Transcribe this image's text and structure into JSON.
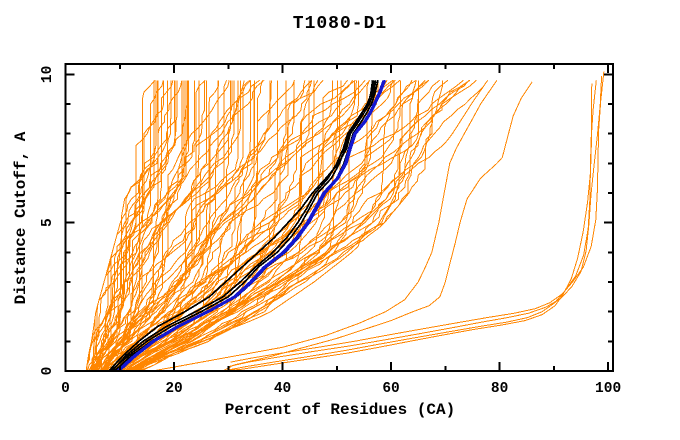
{
  "title": "T1080-D1",
  "x_axis": {
    "label": "Percent of Residues (CA)",
    "min": 0,
    "max": 100,
    "major_ticks": [
      0,
      20,
      40,
      60,
      80,
      100
    ],
    "minor_ticks": [
      10,
      30,
      50,
      70,
      90
    ]
  },
  "y_axis": {
    "label": "Distance Cutoff, A",
    "min": 0,
    "max": 10,
    "major_ticks": [
      0,
      5,
      10
    ],
    "minor_ticks": [
      1,
      2,
      3,
      4,
      6,
      7,
      8,
      9
    ]
  },
  "colors": {
    "predictions": "#ff8600",
    "highlight_black": "#000000",
    "highlight_blue": "#1518cf",
    "axis": "#000000",
    "background": "#ffffff"
  },
  "chart_data": {
    "type": "line",
    "title": "T1080-D1",
    "xlabel": "Percent of Residues (CA)",
    "ylabel": "Distance Cutoff, A",
    "xlim": [
      0,
      100.9
    ],
    "ylim": [
      0,
      10.35
    ],
    "grid": false,
    "legend": "none",
    "curve_y_max": 9.8,
    "orange_bundle": {
      "comment": "dense fan of prediction curves; envelope rows are [y, x_left, x_right]",
      "count": 95,
      "seed": 20211080,
      "y_step": 0.2,
      "envelope": [
        [
          0,
          4.2,
          13.5
        ],
        [
          0.5,
          4.6,
          19
        ],
        [
          1,
          5.2,
          26
        ],
        [
          1.5,
          5.6,
          31.5
        ],
        [
          2,
          6.0,
          37
        ],
        [
          3,
          7.5,
          45
        ],
        [
          4,
          9.0,
          52
        ],
        [
          5,
          10.5,
          58
        ],
        [
          6,
          11.5,
          62.5
        ],
        [
          7,
          12.3,
          66.5
        ],
        [
          8,
          12.9,
          70.5
        ],
        [
          9,
          13.2,
          74
        ],
        [
          9.8,
          13.4,
          77
        ]
      ]
    },
    "black_curves": [
      [
        [
          0,
          8.0
        ],
        [
          0.5,
          10.5
        ],
        [
          1,
          13.5
        ],
        [
          1.5,
          17
        ],
        [
          2,
          22
        ],
        [
          2.5,
          26.5
        ],
        [
          3,
          29.5
        ],
        [
          3.5,
          32.5
        ],
        [
          4,
          35.5
        ],
        [
          4.5,
          38.5
        ],
        [
          5,
          41
        ],
        [
          5.5,
          43.5
        ],
        [
          6,
          45.5
        ],
        [
          6.5,
          48
        ],
        [
          7,
          50.3
        ],
        [
          7.5,
          51.8
        ],
        [
          8,
          52.5
        ],
        [
          8.4,
          54
        ],
        [
          8.7,
          55
        ],
        [
          9,
          55.8
        ],
        [
          9.4,
          56.3
        ],
        [
          9.8,
          56.6
        ]
      ],
      [
        [
          0,
          8.3
        ],
        [
          0.5,
          11.5
        ],
        [
          1,
          15
        ],
        [
          1.5,
          19.5
        ],
        [
          2,
          25
        ],
        [
          2.5,
          30
        ],
        [
          3,
          33
        ],
        [
          3.5,
          35.5
        ],
        [
          4,
          39
        ],
        [
          4.5,
          41.5
        ],
        [
          5,
          43.5
        ],
        [
          5.5,
          45
        ],
        [
          6,
          46.5
        ],
        [
          6.5,
          49
        ],
        [
          7,
          50.5
        ],
        [
          7.5,
          51.5
        ],
        [
          8,
          52.2
        ],
        [
          8.4,
          53.8
        ],
        [
          8.7,
          55
        ],
        [
          9,
          56
        ],
        [
          9.4,
          56.8
        ],
        [
          9.8,
          57.2
        ]
      ],
      [
        [
          0,
          8.6
        ],
        [
          0.5,
          11
        ],
        [
          1,
          14.3
        ],
        [
          1.5,
          18.6
        ],
        [
          2,
          24
        ],
        [
          2.5,
          29
        ],
        [
          3,
          32.2
        ],
        [
          3.5,
          35
        ],
        [
          4,
          38.2
        ],
        [
          4.5,
          40.8
        ],
        [
          5,
          42.8
        ],
        [
          5.5,
          44.5
        ],
        [
          6,
          46
        ],
        [
          6.5,
          48.4
        ],
        [
          7,
          50
        ],
        [
          7.5,
          51.2
        ],
        [
          8,
          52
        ],
        [
          8.4,
          53.5
        ],
        [
          8.7,
          54.6
        ],
        [
          9,
          55.6
        ],
        [
          9.4,
          56.5
        ],
        [
          9.8,
          56.9
        ]
      ],
      [
        [
          0,
          9.0
        ],
        [
          0.5,
          12
        ],
        [
          1,
          15.8
        ],
        [
          1.5,
          20.5
        ],
        [
          2,
          26.5
        ],
        [
          2.5,
          31.5
        ],
        [
          3,
          34.5
        ],
        [
          3.5,
          37
        ],
        [
          4,
          40.5
        ],
        [
          4.5,
          43
        ],
        [
          5,
          44.8
        ],
        [
          5.5,
          46.3
        ],
        [
          6,
          47.8
        ],
        [
          6.5,
          50
        ],
        [
          7,
          51.3
        ],
        [
          7.5,
          52.2
        ],
        [
          8,
          53
        ],
        [
          8.4,
          54.5
        ],
        [
          8.7,
          55.5
        ],
        [
          9,
          56.4
        ],
        [
          9.4,
          57.1
        ],
        [
          9.8,
          57.6
        ]
      ]
    ],
    "blue_curves": [
      [
        [
          0,
          9.5
        ],
        [
          0.5,
          12.5
        ],
        [
          1,
          16
        ],
        [
          1.5,
          20.5
        ],
        [
          2,
          26
        ],
        [
          2.5,
          31
        ],
        [
          3,
          34
        ],
        [
          3.5,
          36.5
        ],
        [
          4,
          40
        ],
        [
          4.5,
          42.5
        ],
        [
          5,
          44.5
        ],
        [
          5.5,
          46
        ],
        [
          6,
          47.5
        ],
        [
          6.5,
          50
        ],
        [
          7,
          51.5
        ],
        [
          7.5,
          52.3
        ],
        [
          8,
          53.2
        ],
        [
          8.4,
          55
        ],
        [
          8.7,
          56
        ],
        [
          9,
          56.8
        ],
        [
          9.4,
          57.8
        ],
        [
          9.8,
          58.6
        ]
      ],
      [
        [
          0,
          9.9
        ],
        [
          0.5,
          12.9
        ],
        [
          1,
          16.4
        ],
        [
          1.5,
          21
        ],
        [
          2,
          26.4
        ],
        [
          2.5,
          31.4
        ],
        [
          3,
          34.4
        ],
        [
          3.5,
          36.9
        ],
        [
          4,
          40.4
        ],
        [
          4.5,
          42.9
        ],
        [
          5,
          44.9
        ],
        [
          5.5,
          46.4
        ],
        [
          6,
          47.9
        ],
        [
          6.5,
          50.3
        ],
        [
          7,
          51.8
        ],
        [
          7.5,
          52.6
        ],
        [
          8,
          53.5
        ],
        [
          8.4,
          55.3
        ],
        [
          8.7,
          56.3
        ],
        [
          9,
          57.1
        ],
        [
          9.4,
          58.1
        ],
        [
          9.8,
          58.9
        ]
      ]
    ],
    "outlier_curves": [
      [
        [
          0,
          16
        ],
        [
          0.2,
          22
        ],
        [
          0.5,
          31
        ],
        [
          0.8,
          40
        ],
        [
          1.2,
          48
        ],
        [
          1.6,
          54
        ],
        [
          2,
          59
        ],
        [
          2.4,
          62.5
        ],
        [
          3,
          65
        ],
        [
          3.5,
          66.3
        ],
        [
          4,
          67.5
        ],
        [
          5,
          68.8
        ],
        [
          6,
          69.8
        ],
        [
          7,
          70.8
        ],
        [
          7.5,
          72
        ],
        [
          8,
          73.5
        ],
        [
          8.5,
          75
        ],
        [
          9,
          76.5
        ],
        [
          9.4,
          78
        ],
        [
          9.8,
          79.5
        ]
      ],
      [
        [
          0,
          29
        ],
        [
          0.2,
          31
        ],
        [
          0.5,
          38
        ],
        [
          0.8,
          44
        ],
        [
          1.1,
          50
        ],
        [
          1.4,
          55
        ],
        [
          1.7,
          60
        ],
        [
          2,
          64
        ],
        [
          2.2,
          67
        ],
        [
          2.5,
          69
        ],
        [
          3,
          70
        ],
        [
          3.6,
          70.8
        ],
        [
          4.3,
          71.8
        ],
        [
          5,
          72.7
        ],
        [
          5.8,
          74
        ],
        [
          6.5,
          76.5
        ],
        [
          7,
          79.5
        ],
        [
          7.2,
          80.5
        ],
        [
          7.9,
          81.5
        ],
        [
          8.6,
          82.5
        ],
        [
          9.2,
          84
        ],
        [
          9.75,
          86
        ]
      ]
    ],
    "right_group": {
      "comment": "near-native models hugging 97-99% at large cutoffs",
      "base": [
        [
          0,
          29
        ],
        [
          0.15,
          33
        ],
        [
          0.3,
          38
        ],
        [
          0.5,
          45
        ],
        [
          0.7,
          52
        ],
        [
          0.9,
          58
        ],
        [
          1.1,
          64
        ],
        [
          1.3,
          70
        ],
        [
          1.5,
          76
        ],
        [
          1.65,
          81
        ],
        [
          1.8,
          85
        ],
        [
          2,
          88
        ],
        [
          2.3,
          90.5
        ],
        [
          2.7,
          92.3
        ],
        [
          3.2,
          94
        ],
        [
          3.9,
          95.2
        ],
        [
          4.8,
          96
        ],
        [
          5.8,
          96.5
        ],
        [
          6.8,
          96.9
        ],
        [
          7.8,
          97.2
        ],
        [
          8.8,
          97.5
        ],
        [
          9.8,
          97.8
        ]
      ],
      "offsets": [
        [
          0,
          0
        ],
        [
          0.7,
          0.15
        ],
        [
          -0.5,
          -0.1
        ],
        [
          1.4,
          0.3
        ]
      ]
    }
  }
}
